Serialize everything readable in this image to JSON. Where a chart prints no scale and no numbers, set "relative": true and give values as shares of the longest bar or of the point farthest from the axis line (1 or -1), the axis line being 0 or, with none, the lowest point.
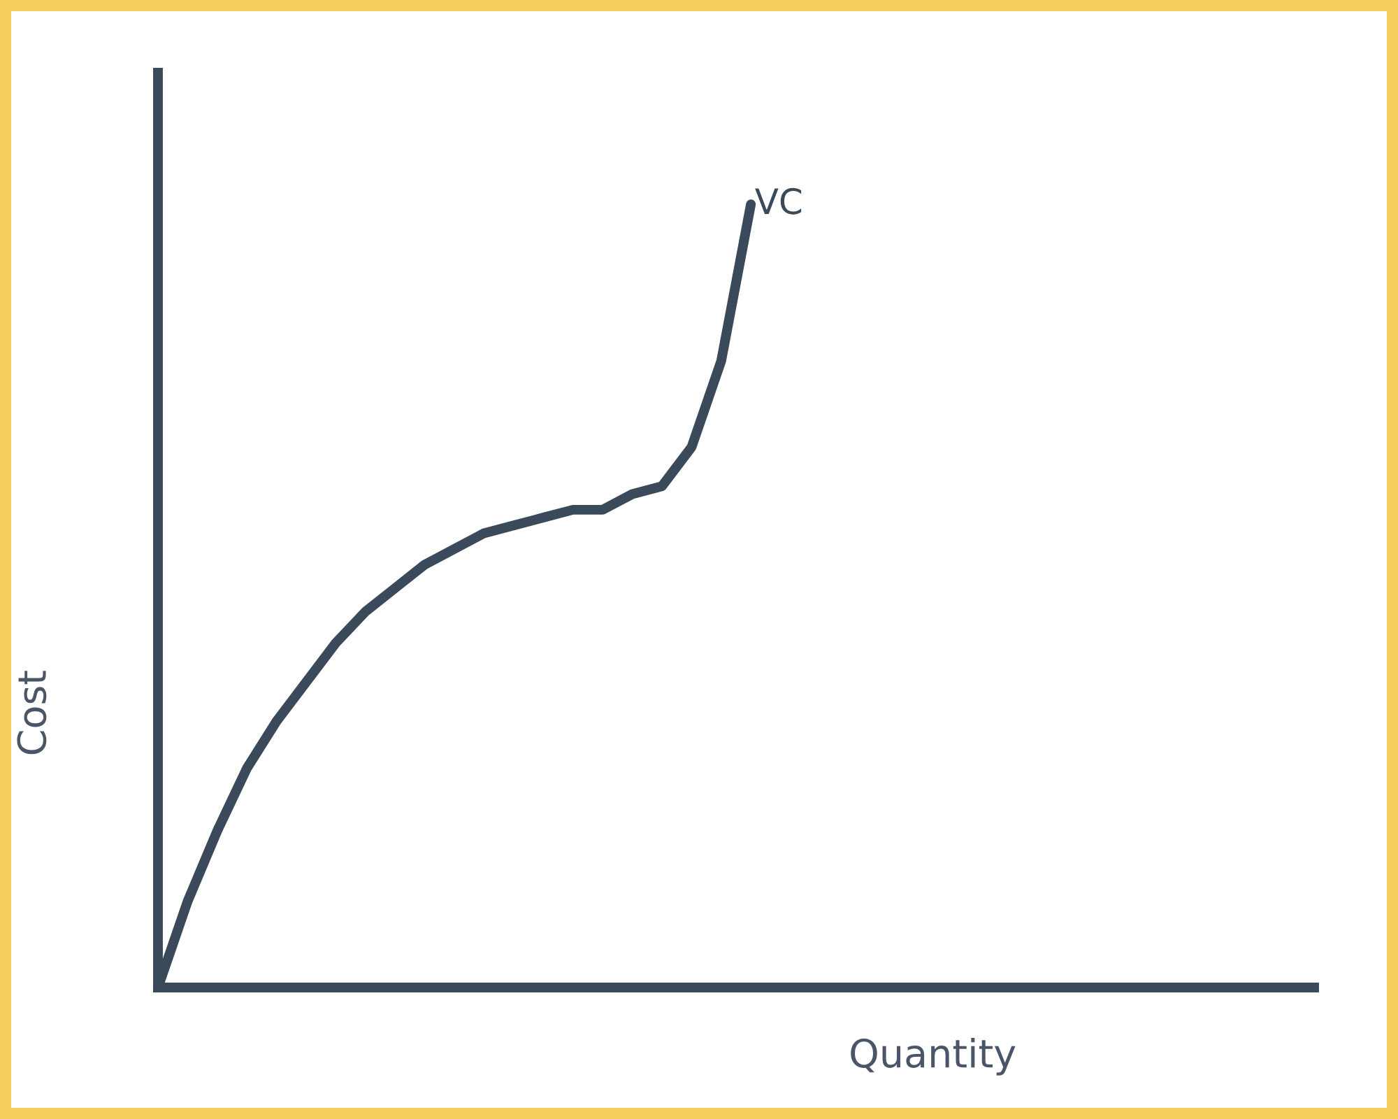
{
  "chart_data": {
    "type": "line",
    "relative": true,
    "xlabel": "Quantity",
    "ylabel": "Cost",
    "categories": [
      null,
      null,
      null,
      null,
      null,
      null,
      null,
      null,
      null,
      null,
      null,
      null,
      null,
      null,
      null,
      null,
      null,
      null,
      null,
      null,
      null,
      null,
      null,
      null,
      null,
      null,
      null,
      null,
      null,
      null,
      null,
      null,
      null,
      null,
      null,
      null,
      null,
      null,
      null,
      null
    ],
    "series": [
      {
        "name": "VC",
        "color": "#3b4a5a",
        "values": [
          0,
          0.11,
          0.2,
          0.28,
          0.34,
          0.39,
          0.44,
          0.48,
          0.51,
          0.54,
          0.56,
          0.58,
          0.59,
          0.6,
          0.61,
          0.61,
          0.63,
          0.64,
          0.69,
          0.8,
          1.0,
          null,
          null,
          null,
          null,
          null,
          null,
          null,
          null,
          null,
          null,
          null,
          null,
          null,
          null,
          null,
          null,
          null,
          null,
          null
        ]
      }
    ],
    "legend": false,
    "marker": "none",
    "line_style": "solid"
  }
}
